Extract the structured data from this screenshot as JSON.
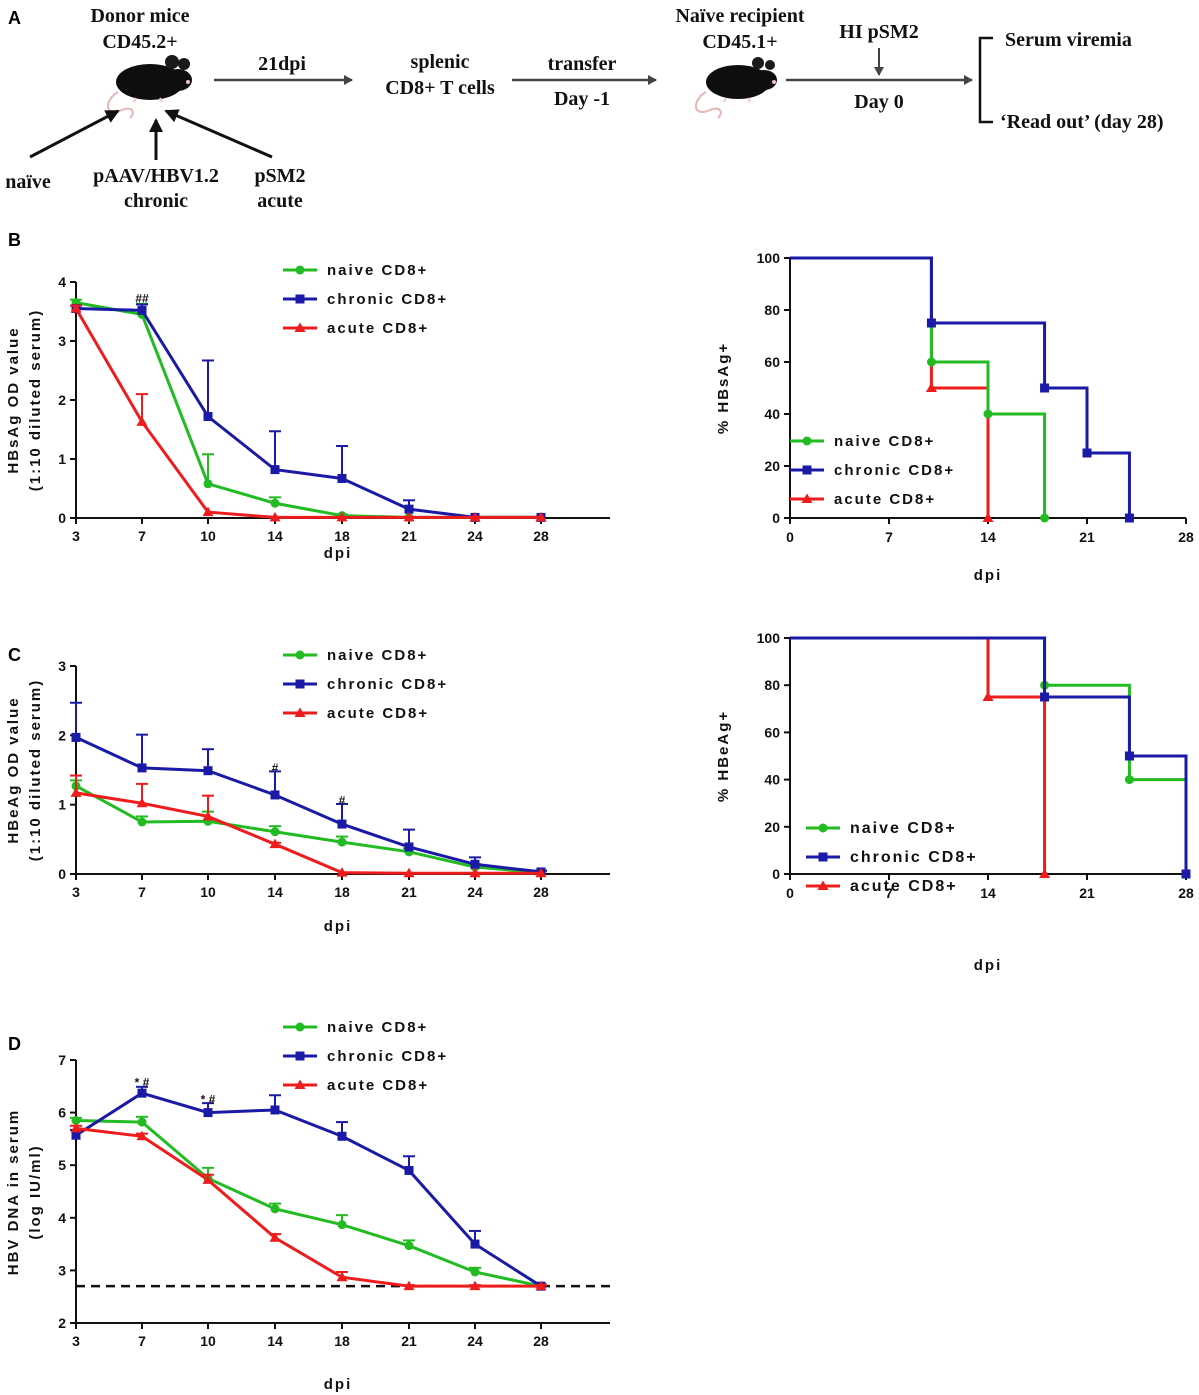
{
  "colors": {
    "naive": "#22bb22",
    "chronic": "#1a1aa6",
    "acute": "#ee1c1c",
    "arrow": "#444444"
  },
  "schematic": {
    "panel_label": "A",
    "donor_title": "Donor mice",
    "donor_marker": "CD45.2+",
    "groups": [
      "naïve",
      "pAAV/HBV1.2",
      "chronic",
      "pSM2",
      "acute"
    ],
    "step1_label": "21dpi",
    "cells_line1": "splenic",
    "cells_line2": "CD8+ T cells",
    "transfer_label": "transfer",
    "transfer_day": "Day -1",
    "recipient_title": "Naïve recipient",
    "recipient_marker": "CD45.1+",
    "challenge_label": "HI pSM2",
    "challenge_day": "Day 0",
    "readout1": "Serum viremia",
    "readout2": "‘Read out’ (day 28)"
  },
  "chart_data": [
    {
      "id": "B_od",
      "panel": "B",
      "type": "line",
      "x": [
        3,
        7,
        10,
        14,
        18,
        21,
        24,
        28
      ],
      "xticks": [
        "3",
        "7",
        "10",
        "14",
        "18",
        "21",
        "24",
        "28"
      ],
      "xlabel": "dpi",
      "ylabel_line1": "HBsAg OD value",
      "ylabel_line2": "(1:10 diluted serum)",
      "ylim": [
        0,
        4
      ],
      "yticks": [
        "0",
        "1",
        "2",
        "3",
        "4"
      ],
      "series": [
        {
          "name": "naive CD8+",
          "color": "naive",
          "marker": "circle",
          "values": [
            3.65,
            3.45,
            0.58,
            0.25,
            0.04,
            0.01,
            0.01,
            0.01
          ],
          "errors": [
            0.05,
            0.18,
            0.5,
            0.1,
            0.02,
            0.01,
            0.01,
            0.01
          ]
        },
        {
          "name": "chronic CD8+",
          "color": "chronic",
          "marker": "square",
          "values": [
            3.55,
            3.52,
            1.72,
            0.82,
            0.67,
            0.15,
            0.01,
            0.01
          ],
          "errors": [
            0.05,
            0.1,
            0.95,
            0.65,
            0.55,
            0.15,
            0.01,
            0.01
          ]
        },
        {
          "name": "acute CD8+",
          "color": "acute",
          "marker": "triangle",
          "values": [
            3.55,
            1.63,
            0.1,
            0.01,
            0.01,
            0.01,
            0.01,
            0.01
          ],
          "errors": [
            0.05,
            0.47,
            0.01,
            0.01,
            0.01,
            0.01,
            0.01,
            0.01
          ]
        }
      ],
      "annotations": [
        {
          "x": 7,
          "y": 3.72,
          "text": "##"
        }
      ]
    },
    {
      "id": "B_surv",
      "type": "step",
      "xlim": [
        0,
        28
      ],
      "xticks": [
        "0",
        "7",
        "14",
        "21",
        "28"
      ],
      "xlabel": "dpi",
      "ylabel": "% HBsAg+",
      "ylim": [
        0,
        100
      ],
      "yticks": [
        "0",
        "20",
        "40",
        "60",
        "80",
        "100"
      ],
      "series": [
        {
          "name": "naive CD8+",
          "color": "naive",
          "marker": "circle",
          "steps": [
            [
              0,
              100
            ],
            [
              10,
              60
            ],
            [
              14,
              40
            ],
            [
              18,
              0
            ]
          ]
        },
        {
          "name": "chronic CD8+",
          "color": "chronic",
          "marker": "square",
          "steps": [
            [
              0,
              100
            ],
            [
              10,
              75
            ],
            [
              18,
              50
            ],
            [
              21,
              25
            ],
            [
              24,
              0
            ]
          ]
        },
        {
          "name": "acute CD8+",
          "color": "acute",
          "marker": "triangle",
          "steps": [
            [
              0,
              100
            ],
            [
              10,
              50
            ],
            [
              14,
              0
            ]
          ]
        }
      ]
    },
    {
      "id": "C_od",
      "panel": "C",
      "type": "line",
      "x": [
        3,
        7,
        10,
        14,
        18,
        21,
        24,
        28
      ],
      "xticks": [
        "3",
        "7",
        "10",
        "14",
        "18",
        "21",
        "24",
        "28"
      ],
      "xlabel": "dpi",
      "ylabel_line1": "HBeAg OD value",
      "ylabel_line2": "(1:10 diluted serum)",
      "ylim": [
        0,
        3
      ],
      "yticks": [
        "0",
        "1",
        "2",
        "3"
      ],
      "series": [
        {
          "name": "naive CD8+",
          "color": "naive",
          "marker": "circle",
          "values": [
            1.27,
            0.75,
            0.76,
            0.61,
            0.46,
            0.32,
            0.1,
            0.02
          ],
          "errors": [
            0.08,
            0.08,
            0.14,
            0.08,
            0.08,
            0.05,
            0.04,
            0.02
          ]
        },
        {
          "name": "chronic CD8+",
          "color": "chronic",
          "marker": "square",
          "values": [
            1.97,
            1.53,
            1.49,
            1.14,
            0.72,
            0.39,
            0.14,
            0.03
          ],
          "errors": [
            0.5,
            0.48,
            0.31,
            0.34,
            0.29,
            0.25,
            0.1,
            0.02
          ]
        },
        {
          "name": "acute CD8+",
          "color": "acute",
          "marker": "triangle",
          "values": [
            1.17,
            1.02,
            0.83,
            0.43,
            0.02,
            0.01,
            0.01,
            0.01
          ],
          "errors": [
            0.25,
            0.28,
            0.3,
            0.02,
            0.01,
            0.01,
            0.01,
            0.01
          ]
        }
      ],
      "annotations": [
        {
          "x": 14,
          "y": 1.53,
          "text": "#"
        },
        {
          "x": 18,
          "y": 1.06,
          "text": "#"
        }
      ]
    },
    {
      "id": "C_surv",
      "type": "step",
      "xlim": [
        0,
        28
      ],
      "xticks": [
        "0",
        "7",
        "14",
        "21",
        "28"
      ],
      "xlabel": "dpi",
      "ylabel": "% HBeAg+",
      "ylim": [
        0,
        100
      ],
      "yticks": [
        "0",
        "20",
        "40",
        "60",
        "80",
        "100"
      ],
      "series": [
        {
          "name": "naive CD8+",
          "color": "naive",
          "marker": "circle",
          "steps": [
            [
              0,
              100
            ],
            [
              18,
              80
            ],
            [
              24,
              40
            ]
          ]
        },
        {
          "name": "chronic CD8+",
          "color": "chronic",
          "marker": "square",
          "steps": [
            [
              0,
              100
            ],
            [
              18,
              75
            ],
            [
              24,
              50
            ],
            [
              28,
              0
            ]
          ]
        },
        {
          "name": "acute CD8+",
          "color": "acute",
          "marker": "triangle",
          "steps": [
            [
              0,
              100
            ],
            [
              14,
              75
            ],
            [
              18,
              0
            ]
          ]
        }
      ]
    },
    {
      "id": "D_dna",
      "panel": "D",
      "type": "line",
      "x": [
        3,
        7,
        10,
        14,
        18,
        21,
        24,
        28
      ],
      "xticks": [
        "3",
        "7",
        "10",
        "14",
        "18",
        "21",
        "24",
        "28"
      ],
      "xlabel": "dpi",
      "ylabel_line1": "HBV DNA in serum",
      "ylabel_line2": "(log IU/ml)",
      "ylim": [
        2,
        7
      ],
      "yticks": [
        "2",
        "3",
        "4",
        "5",
        "6",
        "7"
      ],
      "reference_line": 2.7,
      "series": [
        {
          "name": "naive CD8+",
          "color": "naive",
          "marker": "circle",
          "values": [
            5.85,
            5.82,
            4.75,
            4.17,
            3.87,
            3.47,
            2.97,
            2.7
          ],
          "errors": [
            0.05,
            0.1,
            0.2,
            0.1,
            0.18,
            0.1,
            0.08,
            0.03
          ]
        },
        {
          "name": "chronic CD8+",
          "color": "chronic",
          "marker": "square",
          "values": [
            5.57,
            6.37,
            6.0,
            6.05,
            5.55,
            4.9,
            3.5,
            2.7
          ],
          "errors": [
            0.1,
            0.12,
            0.18,
            0.28,
            0.27,
            0.27,
            0.25,
            0.03
          ]
        },
        {
          "name": "acute CD8+",
          "color": "acute",
          "marker": "triangle",
          "values": [
            5.7,
            5.55,
            4.72,
            3.62,
            2.87,
            2.7,
            2.7,
            2.7
          ],
          "errors": [
            0.05,
            0.05,
            0.1,
            0.07,
            0.1,
            0.02,
            0.02,
            0.02
          ]
        }
      ],
      "annotations": [
        {
          "x": 7,
          "y": 6.57,
          "text": "* #"
        },
        {
          "x": 10,
          "y": 6.25,
          "text": "* #"
        }
      ]
    }
  ]
}
